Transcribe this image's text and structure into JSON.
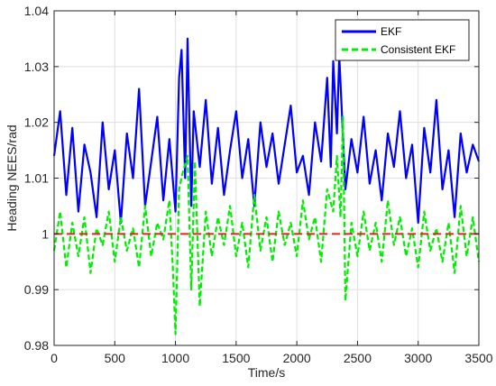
{
  "chart_data": {
    "type": "line",
    "title": "",
    "xlabel": "Time/s",
    "ylabel": "Heading NEES/rad",
    "xlim": [
      0,
      3500
    ],
    "ylim": [
      0.98,
      1.04
    ],
    "xticks": [
      0,
      500,
      1000,
      1500,
      2000,
      2500,
      3000,
      3500
    ],
    "yticks": [
      0.98,
      0.99,
      1.0,
      1.01,
      1.02,
      1.03,
      1.04
    ],
    "xtick_labels": [
      "0",
      "500",
      "1000",
      "1500",
      "2000",
      "2500",
      "3000",
      "3500"
    ],
    "ytick_labels": [
      "0.98",
      "0.99",
      "1",
      "1.01",
      "1.02",
      "1.03",
      "1.04"
    ],
    "grid": true,
    "legend_position": "top-right",
    "reference_line": {
      "y": 1.0,
      "color": "#d62728",
      "style": "dashed"
    },
    "series": [
      {
        "name": "EKF",
        "color": "#0000ff",
        "style": "solid",
        "x": [
          0,
          50,
          100,
          150,
          200,
          250,
          300,
          350,
          400,
          450,
          500,
          550,
          600,
          650,
          700,
          750,
          800,
          850,
          900,
          950,
          1000,
          1030,
          1050,
          1080,
          1100,
          1130,
          1150,
          1200,
          1250,
          1300,
          1350,
          1400,
          1450,
          1500,
          1550,
          1600,
          1650,
          1700,
          1750,
          1800,
          1850,
          1900,
          1950,
          2000,
          2050,
          2100,
          2150,
          2200,
          2250,
          2280,
          2300,
          2330,
          2350,
          2400,
          2450,
          2500,
          2550,
          2600,
          2650,
          2700,
          2750,
          2800,
          2850,
          2900,
          2950,
          3000,
          3050,
          3100,
          3150,
          3200,
          3250,
          3300,
          3350,
          3400,
          3450,
          3500
        ],
        "values": [
          1.014,
          1.022,
          1.007,
          1.019,
          1.004,
          1.016,
          1.011,
          1.003,
          1.02,
          1.008,
          1.015,
          1.002,
          1.018,
          1.01,
          1.026,
          1.005,
          1.013,
          1.021,
          1.006,
          1.017,
          1.004,
          1.028,
          1.033,
          1.01,
          1.035,
          1.005,
          1.022,
          1.012,
          1.024,
          1.009,
          1.019,
          1.007,
          1.015,
          1.022,
          1.01,
          1.017,
          1.005,
          1.02,
          1.012,
          1.018,
          1.009,
          1.016,
          1.023,
          1.011,
          1.014,
          1.007,
          1.02,
          1.013,
          1.028,
          1.012,
          1.031,
          1.018,
          1.032,
          1.008,
          1.017,
          1.011,
          1.021,
          1.009,
          1.015,
          1.006,
          1.018,
          1.012,
          1.022,
          1.01,
          1.016,
          1.002,
          1.019,
          1.011,
          1.024,
          1.008,
          1.015,
          1.003,
          1.018,
          1.011,
          1.016,
          1.013
        ]
      },
      {
        "name": "Consistent EKF",
        "color": "#00ee00",
        "style": "dashed",
        "x": [
          0,
          50,
          100,
          150,
          200,
          250,
          300,
          350,
          400,
          450,
          500,
          550,
          600,
          650,
          700,
          750,
          800,
          850,
          900,
          950,
          980,
          1000,
          1030,
          1060,
          1100,
          1130,
          1160,
          1200,
          1250,
          1300,
          1350,
          1400,
          1450,
          1500,
          1550,
          1600,
          1650,
          1700,
          1750,
          1800,
          1850,
          1900,
          1950,
          2000,
          2050,
          2100,
          2150,
          2200,
          2250,
          2300,
          2330,
          2360,
          2380,
          2400,
          2450,
          2500,
          2550,
          2600,
          2650,
          2700,
          2750,
          2800,
          2850,
          2900,
          2950,
          3000,
          3050,
          3100,
          3150,
          3200,
          3250,
          3300,
          3350,
          3400,
          3450,
          3500
        ],
        "values": [
          0.997,
          1.004,
          0.994,
          1.002,
          0.996,
          1.003,
          0.993,
          1.001,
          0.998,
          1.004,
          0.995,
          1.003,
          0.997,
          1.001,
          0.994,
          1.005,
          0.996,
          1.002,
          0.999,
          1.006,
          0.993,
          0.982,
          1.008,
          1.011,
          1.014,
          0.99,
          1.013,
          0.987,
          1.004,
          0.996,
          1.003,
          0.998,
          1.005,
          0.996,
          1.002,
          0.994,
          1.007,
          0.997,
          1.003,
          0.995,
          1.004,
          0.998,
          1.002,
          0.996,
          1.006,
          0.999,
          1.003,
          0.995,
          1.008,
          1.004,
          1.014,
          1.003,
          1.021,
          0.988,
          1.002,
          0.996,
          1.004,
          0.997,
          1.002,
          0.995,
          1.006,
          0.998,
          1.003,
          0.996,
          1.001,
          0.994,
          1.004,
          0.997,
          1.001,
          0.995,
          1.002,
          0.993,
          1.005,
          0.996,
          1.003,
          0.995
        ]
      }
    ]
  }
}
